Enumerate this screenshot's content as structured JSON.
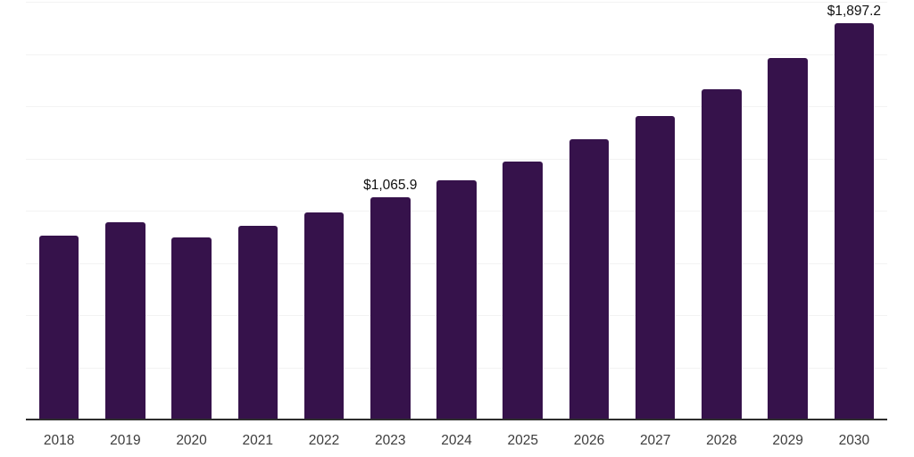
{
  "chart_data": {
    "type": "bar",
    "title": "",
    "xlabel": "",
    "ylabel": "",
    "categories": [
      "2018",
      "2019",
      "2020",
      "2021",
      "2022",
      "2023",
      "2024",
      "2025",
      "2026",
      "2027",
      "2028",
      "2029",
      "2030"
    ],
    "values": [
      879,
      943,
      872,
      926,
      990,
      1065.9,
      1146,
      1235,
      1342,
      1453,
      1580,
      1730,
      1897.2
    ],
    "point_labels": [
      "",
      "",
      "",
      "",
      "",
      "$1,065.9",
      "",
      "",
      "",
      "",
      "",
      "",
      "$1,897.2"
    ],
    "ylim": [
      0,
      2000
    ],
    "grid": true,
    "grid_step": 250,
    "legend": false,
    "bar_color": "#36124B",
    "gridline_color": "#f3f3f3",
    "axis_line_color": "#2e2e2e",
    "tick_label_color": "#3d3d3d",
    "value_label_color": "#111111",
    "background_color": "#ffffff"
  }
}
